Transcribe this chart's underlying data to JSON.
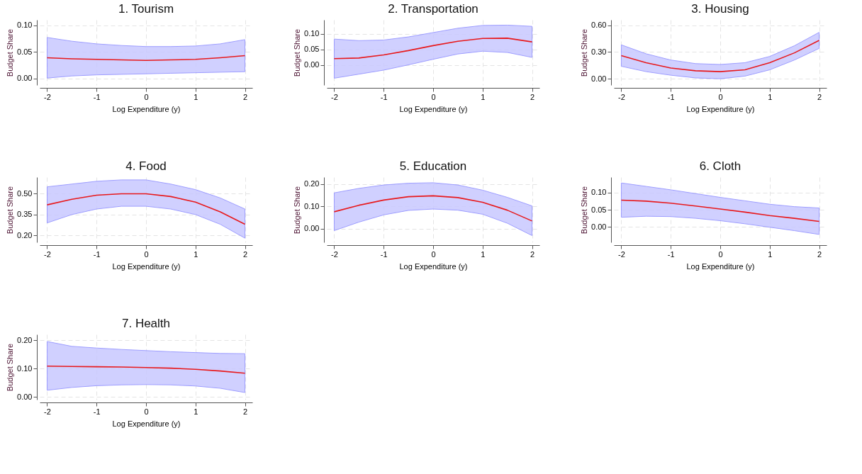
{
  "chart_data": [
    {
      "type": "line",
      "title": "1. Tourism",
      "xlabel": "Log Expenditure (y)",
      "ylabel": "Budget Share",
      "x": [
        -2,
        -1.5,
        -1,
        -0.5,
        0,
        0.5,
        1,
        1.5,
        2
      ],
      "xlim": [
        -2.15,
        2.15
      ],
      "xticks": [
        -2,
        -1,
        0,
        1,
        2
      ],
      "ylim": [
        -0.012,
        0.11
      ],
      "yticks": [
        {
          "value": 0,
          "label": "0.00"
        },
        {
          "value": 0.05,
          "label": "0.05"
        },
        {
          "value": 0.1,
          "label": "0.10"
        }
      ],
      "grid": true,
      "series": [
        {
          "color": "#e8191c",
          "values": [
            0.039,
            0.037,
            0.036,
            0.035,
            0.034,
            0.035,
            0.036,
            0.039,
            0.043
          ],
          "lower": [
            0.001,
            0.005,
            0.007,
            0.008,
            0.009,
            0.01,
            0.011,
            0.012,
            0.013
          ],
          "upper": [
            0.077,
            0.07,
            0.065,
            0.062,
            0.06,
            0.06,
            0.061,
            0.065,
            0.073
          ]
        }
      ]
    },
    {
      "type": "line",
      "title": "2. Transportation",
      "xlabel": "Log Expenditure (y)",
      "ylabel": "Budget Share",
      "x": [
        -2,
        -1.5,
        -1,
        -0.5,
        0,
        0.5,
        1,
        1.5,
        2
      ],
      "xlim": [
        -2.15,
        2.15
      ],
      "xticks": [
        -2,
        -1,
        0,
        1,
        2
      ],
      "ylim": [
        -0.065,
        0.145
      ],
      "yticks": [
        {
          "value": 0,
          "label": "0.00"
        },
        {
          "value": 0.05,
          "label": "0.05"
        },
        {
          "value": 0.1,
          "label": "0.10"
        }
      ],
      "grid": true,
      "series": [
        {
          "color": "#e8191c",
          "values": [
            0.02,
            0.022,
            0.032,
            0.046,
            0.062,
            0.076,
            0.085,
            0.086,
            0.074
          ],
          "lower": [
            -0.043,
            -0.03,
            -0.017,
            0.0,
            0.018,
            0.035,
            0.044,
            0.04,
            0.024
          ],
          "upper": [
            0.083,
            0.078,
            0.08,
            0.09,
            0.104,
            0.118,
            0.127,
            0.128,
            0.124
          ]
        }
      ]
    },
    {
      "type": "line",
      "title": "3. Housing",
      "xlabel": "Log Expenditure (y)",
      "ylabel": "Budget Share",
      "x": [
        -2,
        -1.5,
        -1,
        -0.5,
        0,
        0.5,
        1,
        1.5,
        2
      ],
      "xlim": [
        -2.15,
        2.15
      ],
      "xticks": [
        -2,
        -1,
        0,
        1,
        2
      ],
      "ylim": [
        -0.07,
        0.66
      ],
      "yticks": [
        {
          "value": 0,
          "label": "0.00"
        },
        {
          "value": 0.3,
          "label": "0.30"
        },
        {
          "value": 0.6,
          "label": "0.60"
        }
      ],
      "grid": true,
      "series": [
        {
          "color": "#e8191c",
          "values": [
            0.26,
            0.18,
            0.12,
            0.09,
            0.08,
            0.1,
            0.18,
            0.29,
            0.43
          ],
          "lower": [
            0.14,
            0.08,
            0.04,
            0.01,
            0.0,
            0.03,
            0.1,
            0.21,
            0.34
          ],
          "upper": [
            0.38,
            0.28,
            0.21,
            0.17,
            0.16,
            0.18,
            0.25,
            0.37,
            0.52
          ]
        }
      ]
    },
    {
      "type": "line",
      "title": "4. Food",
      "xlabel": "Log Expenditure (y)",
      "ylabel": "Budget Share",
      "x": [
        -2,
        -1.5,
        -1,
        -0.5,
        0,
        0.5,
        1,
        1.5,
        2
      ],
      "xlim": [
        -2.15,
        2.15
      ],
      "xticks": [
        -2,
        -1,
        0,
        1,
        2
      ],
      "ylim": [
        0.15,
        0.62
      ],
      "yticks": [
        {
          "value": 0.2,
          "label": "0.20"
        },
        {
          "value": 0.35,
          "label": "0.35"
        },
        {
          "value": 0.5,
          "label": "0.50"
        }
      ],
      "grid": true,
      "series": [
        {
          "color": "#e8191c",
          "values": [
            0.42,
            0.46,
            0.49,
            0.5,
            0.5,
            0.48,
            0.44,
            0.37,
            0.28
          ],
          "lower": [
            0.29,
            0.35,
            0.39,
            0.41,
            0.41,
            0.39,
            0.35,
            0.28,
            0.18
          ],
          "upper": [
            0.55,
            0.57,
            0.59,
            0.6,
            0.6,
            0.57,
            0.53,
            0.47,
            0.39
          ]
        }
      ]
    },
    {
      "type": "line",
      "title": "5. Education",
      "xlabel": "Log Expenditure (y)",
      "ylabel": "Budget Share",
      "x": [
        -2,
        -1.5,
        -1,
        -0.5,
        0,
        0.5,
        1,
        1.5,
        2
      ],
      "xlim": [
        -2.15,
        2.15
      ],
      "xticks": [
        -2,
        -1,
        0,
        1,
        2
      ],
      "ylim": [
        -0.06,
        0.23
      ],
      "yticks": [
        {
          "value": 0,
          "label": "0.00"
        },
        {
          "value": 0.1,
          "label": "0.10"
        },
        {
          "value": 0.2,
          "label": "0.20"
        }
      ],
      "grid": true,
      "series": [
        {
          "color": "#e8191c",
          "values": [
            0.076,
            0.105,
            0.128,
            0.143,
            0.147,
            0.139,
            0.118,
            0.083,
            0.035
          ],
          "lower": [
            -0.008,
            0.03,
            0.062,
            0.082,
            0.088,
            0.083,
            0.065,
            0.025,
            -0.03
          ],
          "upper": [
            0.16,
            0.18,
            0.195,
            0.203,
            0.205,
            0.195,
            0.172,
            0.14,
            0.102
          ]
        }
      ]
    },
    {
      "type": "line",
      "title": "6. Cloth",
      "xlabel": "Log Expenditure (y)",
      "ylabel": "Budget Share",
      "x": [
        -2,
        -1.5,
        -1,
        -0.5,
        0,
        0.5,
        1,
        1.5,
        2
      ],
      "xlim": [
        -2.15,
        2.15
      ],
      "xticks": [
        -2,
        -1,
        0,
        1,
        2
      ],
      "ylim": [
        -0.045,
        0.145
      ],
      "yticks": [
        {
          "value": 0,
          "label": "0.00"
        },
        {
          "value": 0.05,
          "label": "0.05"
        },
        {
          "value": 0.1,
          "label": "0.10"
        }
      ],
      "grid": true,
      "series": [
        {
          "color": "#e8191c",
          "values": [
            0.078,
            0.075,
            0.069,
            0.061,
            0.052,
            0.043,
            0.033,
            0.025,
            0.016
          ],
          "lower": [
            0.028,
            0.031,
            0.03,
            0.025,
            0.018,
            0.009,
            -0.001,
            -0.011,
            -0.022
          ],
          "upper": [
            0.128,
            0.118,
            0.108,
            0.097,
            0.086,
            0.076,
            0.066,
            0.059,
            0.055
          ]
        }
      ]
    },
    {
      "type": "line",
      "title": "7. Health",
      "xlabel": "Log Expenditure (y)",
      "ylabel": "Budget Share",
      "x": [
        -2,
        -1.5,
        -1,
        -0.5,
        0,
        0.5,
        1,
        1.5,
        2
      ],
      "xlim": [
        -2.15,
        2.15
      ],
      "xticks": [
        -2,
        -1,
        0,
        1,
        2
      ],
      "ylim": [
        -0.01,
        0.22
      ],
      "yticks": [
        {
          "value": 0,
          "label": "0.00"
        },
        {
          "value": 0.1,
          "label": "0.10"
        },
        {
          "value": 0.2,
          "label": "0.20"
        }
      ],
      "grid": true,
      "series": [
        {
          "color": "#e8191c",
          "values": [
            0.108,
            0.107,
            0.106,
            0.105,
            0.103,
            0.101,
            0.097,
            0.091,
            0.083
          ],
          "lower": [
            0.023,
            0.033,
            0.039,
            0.042,
            0.043,
            0.042,
            0.038,
            0.03,
            0.015
          ],
          "upper": [
            0.195,
            0.178,
            0.172,
            0.167,
            0.163,
            0.159,
            0.156,
            0.153,
            0.152
          ]
        }
      ]
    }
  ]
}
